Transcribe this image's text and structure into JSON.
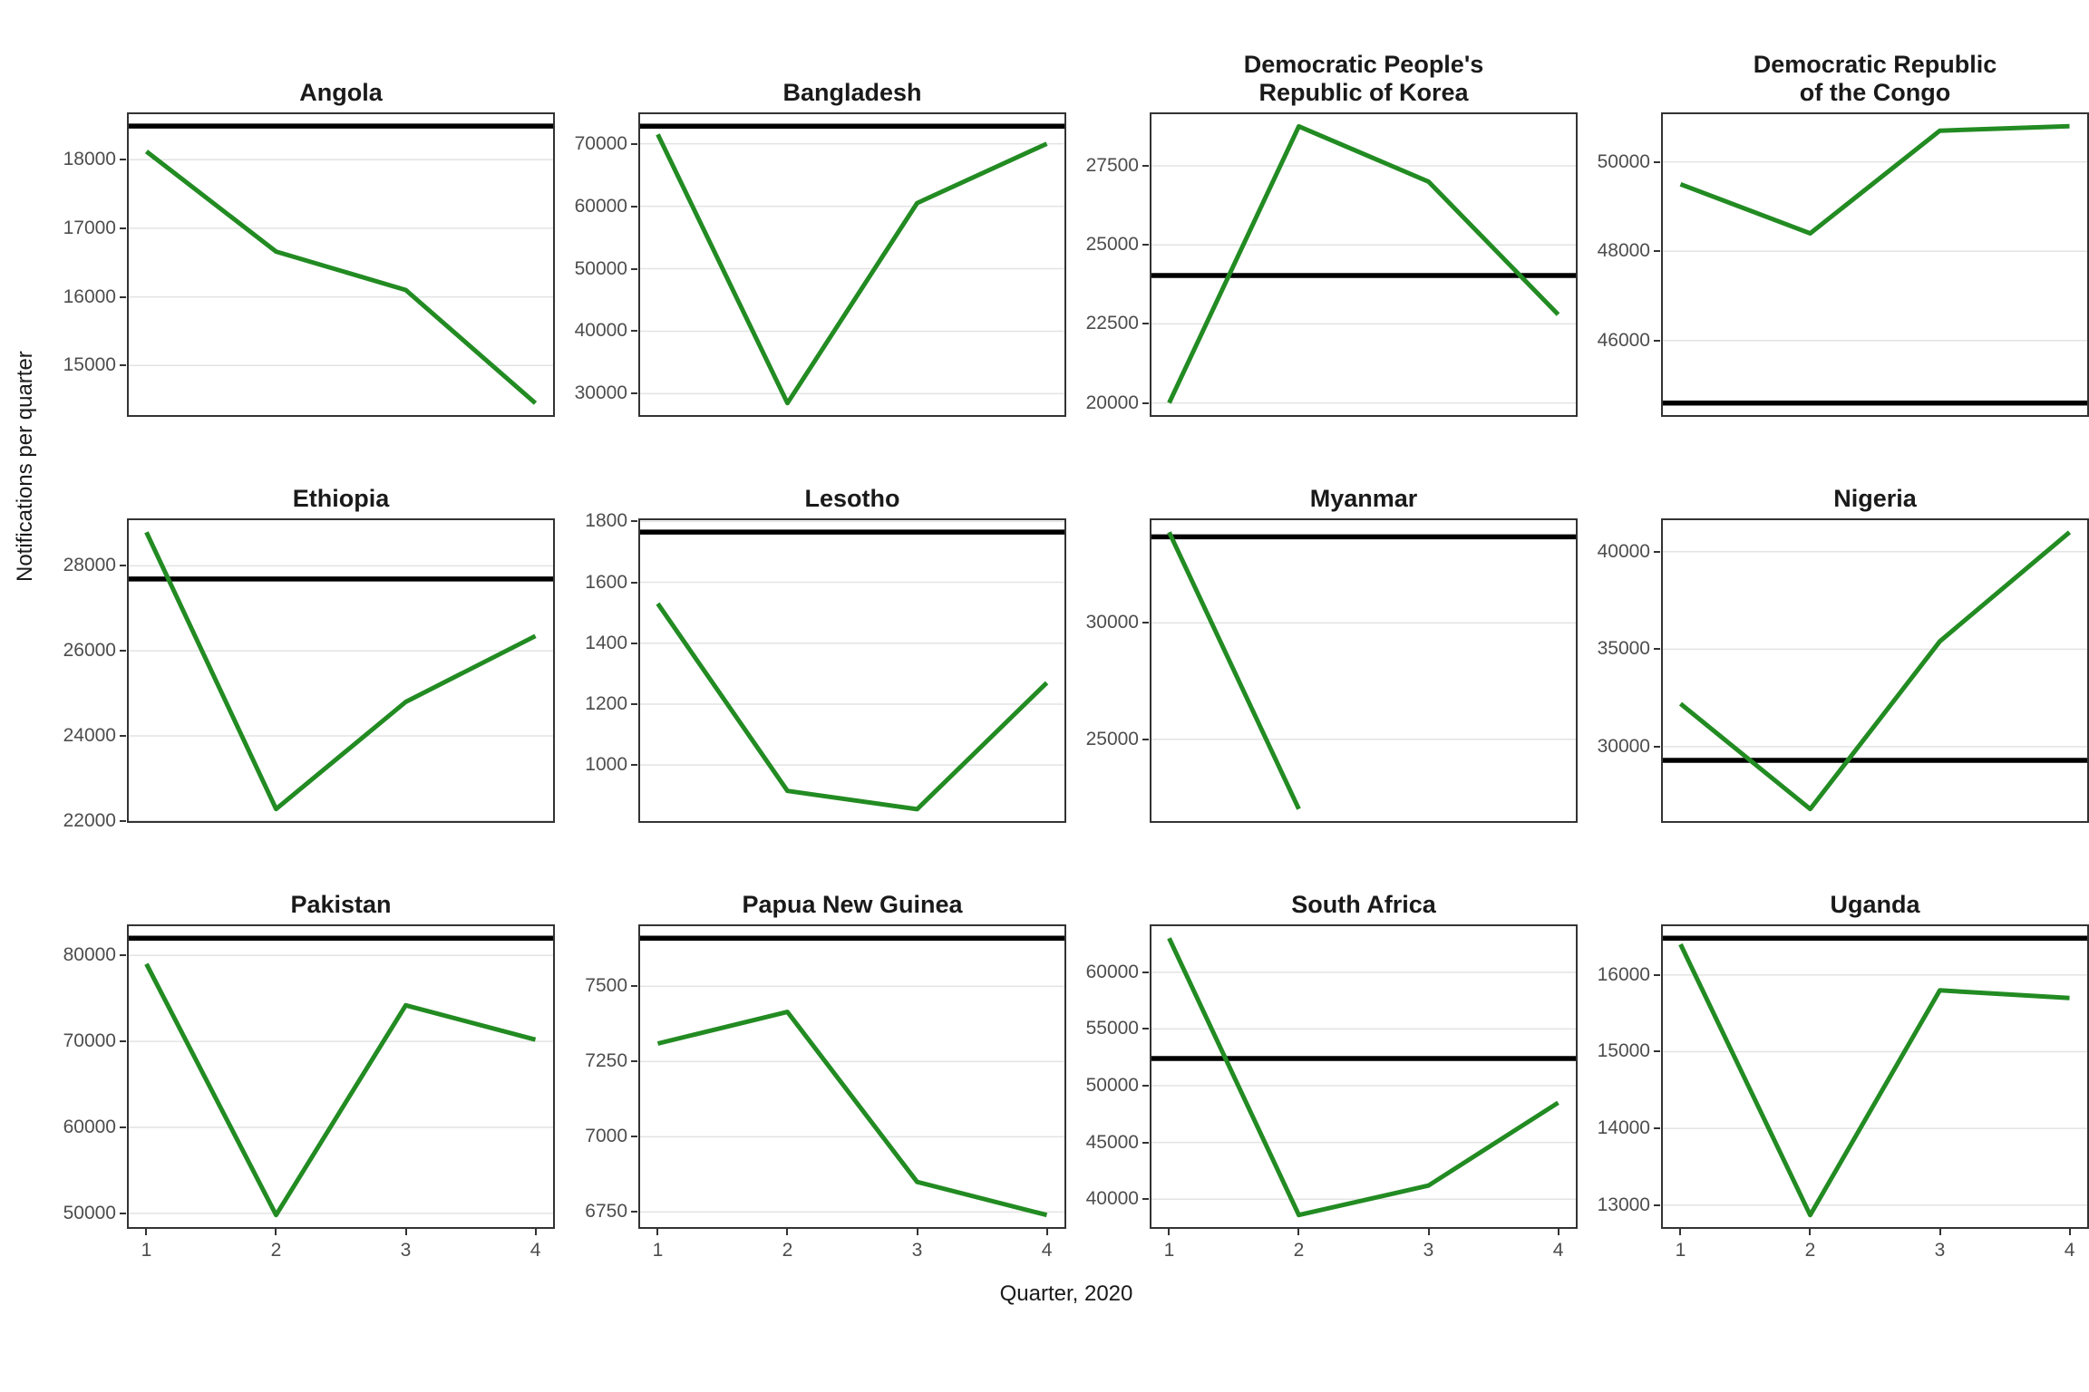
{
  "chart_data": {
    "type": "line",
    "layout": "facet_grid_3_rows_4_cols",
    "x": [
      1,
      2,
      3,
      4
    ],
    "x_tick_labels": [
      "1",
      "2",
      "3",
      "4"
    ],
    "xlabel": "Quarter, 2020",
    "ylabel": "Notifications per quarter",
    "grid": "horizontal-major-only",
    "legend": "none",
    "line_color": "#228B22",
    "reference_line_color": "#000000",
    "facets": [
      {
        "title": "Angola",
        "values": [
          18120,
          16660,
          16100,
          14450
        ],
        "reference_line": 18490,
        "yticks": [
          15000,
          16000,
          17000,
          18000
        ],
        "ylim": [
          14250,
          18690
        ]
      },
      {
        "title": "Bangladesh",
        "values": [
          71500,
          28500,
          60500,
          70000
        ],
        "reference_line": 72800,
        "yticks": [
          30000,
          40000,
          50000,
          60000,
          70000
        ],
        "ylim": [
          26290,
          75020
        ]
      },
      {
        "title": "Democratic People's\nRepublic of Korea",
        "values": [
          20000,
          28750,
          27000,
          22800
        ],
        "reference_line": 24030,
        "yticks": [
          20000,
          22500,
          25000,
          27500
        ],
        "ylim": [
          19560,
          29190
        ]
      },
      {
        "title": "Democratic Republic\nof the Congo",
        "values": [
          49500,
          48400,
          50700,
          50800
        ],
        "reference_line": 44600,
        "yticks": [
          46000,
          48000,
          50000
        ],
        "ylim": [
          44290,
          51110
        ]
      },
      {
        "title": "Ethiopia",
        "values": [
          28790,
          22280,
          24800,
          26350
        ],
        "reference_line": 27690,
        "yticks": [
          22000,
          24000,
          26000,
          28000
        ],
        "ylim": [
          21955,
          29115
        ]
      },
      {
        "title": "Lesotho",
        "values": [
          1530,
          915,
          855,
          1270
        ],
        "reference_line": 1765,
        "yticks": [
          1000,
          1200,
          1400,
          1600,
          1800
        ],
        "ylim": [
          810,
          1810
        ]
      },
      {
        "title": "Myanmar",
        "values": [
          33900,
          22000,
          null,
          null
        ],
        "reference_line": 33700,
        "yticks": [
          25000,
          30000
        ],
        "ylim": [
          21405,
          34495
        ]
      },
      {
        "title": "Nigeria",
        "values": [
          32200,
          26800,
          35400,
          41000
        ],
        "reference_line": 29300,
        "yticks": [
          30000,
          35000,
          40000
        ],
        "ylim": [
          26090,
          41710
        ]
      },
      {
        "title": "Pakistan",
        "values": [
          79000,
          49800,
          74200,
          70200
        ],
        "reference_line": 82000,
        "yticks": [
          50000,
          60000,
          70000,
          80000
        ],
        "ylim": [
          48190,
          83610
        ]
      },
      {
        "title": "Papua New Guinea",
        "values": [
          7310,
          7415,
          6850,
          6740
        ],
        "reference_line": 7660,
        "yticks": [
          6750,
          7000,
          7250,
          7500
        ],
        "ylim": [
          6694,
          7706
        ]
      },
      {
        "title": "South Africa",
        "values": [
          63000,
          38600,
          41200,
          48500
        ],
        "reference_line": 52400,
        "yticks": [
          40000,
          45000,
          50000,
          55000,
          60000
        ],
        "ylim": [
          37380,
          64220
        ]
      },
      {
        "title": "Uganda",
        "values": [
          16400,
          12870,
          15800,
          15700
        ],
        "reference_line": 16480,
        "yticks": [
          13000,
          14000,
          15000,
          16000
        ],
        "ylim": [
          12690,
          16660
        ]
      }
    ]
  }
}
